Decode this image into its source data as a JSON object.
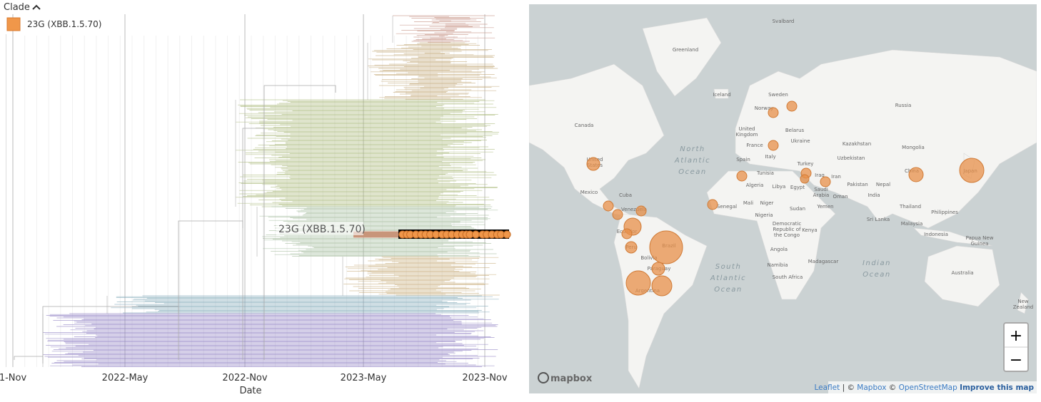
{
  "legend": {
    "title": "Clade",
    "items": [
      "23G (XBB.1.5.70)"
    ]
  },
  "tree": {
    "x_axis": {
      "label": "Date",
      "ticks": [
        "1-Nov",
        "2022-May",
        "2022-Nov",
        "2023-May",
        "2023-Nov"
      ]
    },
    "clade_label": "23G (XBB.1.5.70)"
  },
  "map": {
    "labels": [
      [
        "Svalbard"
      ],
      [
        "Greenland"
      ],
      [
        "Iceland"
      ],
      [
        "Sweden"
      ],
      [
        "Norway"
      ],
      [
        "Russia"
      ],
      [
        "Canada"
      ],
      [
        "United",
        "States"
      ],
      [
        "United",
        "Kingdom"
      ],
      [
        "Belarus"
      ],
      [
        "France"
      ],
      [
        "Ukraine"
      ],
      [
        "Spain"
      ],
      [
        "Italy"
      ],
      [
        "Kazakhstan"
      ],
      [
        "Uzbekistan"
      ],
      [
        "Mongolia"
      ],
      [
        "Turkey"
      ],
      [
        "Tunisia"
      ],
      [
        "Algeria"
      ],
      [
        "Libya"
      ],
      [
        "Egypt"
      ],
      [
        "Iraq"
      ],
      [
        "Iran"
      ],
      [
        "China"
      ],
      [
        "Japan"
      ],
      [
        "Saudi",
        "Arabia"
      ],
      [
        "Pakistan"
      ],
      [
        "Nepal"
      ],
      [
        "India"
      ],
      [
        "Oman"
      ],
      [
        "Mexico"
      ],
      [
        "Cuba"
      ],
      [
        "Mali"
      ],
      [
        "Niger"
      ],
      [
        "Senegal"
      ],
      [
        "Nigeria"
      ],
      [
        "Sudan"
      ],
      [
        "Yemen"
      ],
      [
        "Venezuela"
      ],
      [
        "Ecuador"
      ],
      [
        "Peru"
      ],
      [
        "Brazil"
      ],
      [
        "Bolivia"
      ],
      [
        "Paraguay"
      ],
      [
        "Argentina"
      ],
      [
        "Democratic",
        "Republic of",
        "the Congo"
      ],
      [
        "Kenya"
      ],
      [
        "Angola"
      ],
      [
        "Namibia"
      ],
      [
        "Madagascar"
      ],
      [
        "South Africa"
      ],
      [
        "Thailand"
      ],
      [
        "Philippines"
      ],
      [
        "Sri Lanka"
      ],
      [
        "Malaysia"
      ],
      [
        "Indonesia"
      ],
      [
        "Papua New",
        "Guinea"
      ],
      [
        "Australia"
      ],
      [
        "New",
        "Zealand"
      ]
    ],
    "oceans": [
      [
        "North",
        "Atlantic",
        "Ocean"
      ],
      [
        "South",
        "Atlantic",
        "Ocean"
      ],
      [
        "Indian",
        "Ocean"
      ]
    ],
    "logo": "mapbox",
    "attribution": [
      "Leaflet",
      "| ©",
      "Mapbox",
      "©",
      "OpenStreetMap",
      "Improve this map"
    ],
    "zoom": [
      "+",
      "−"
    ]
  }
}
